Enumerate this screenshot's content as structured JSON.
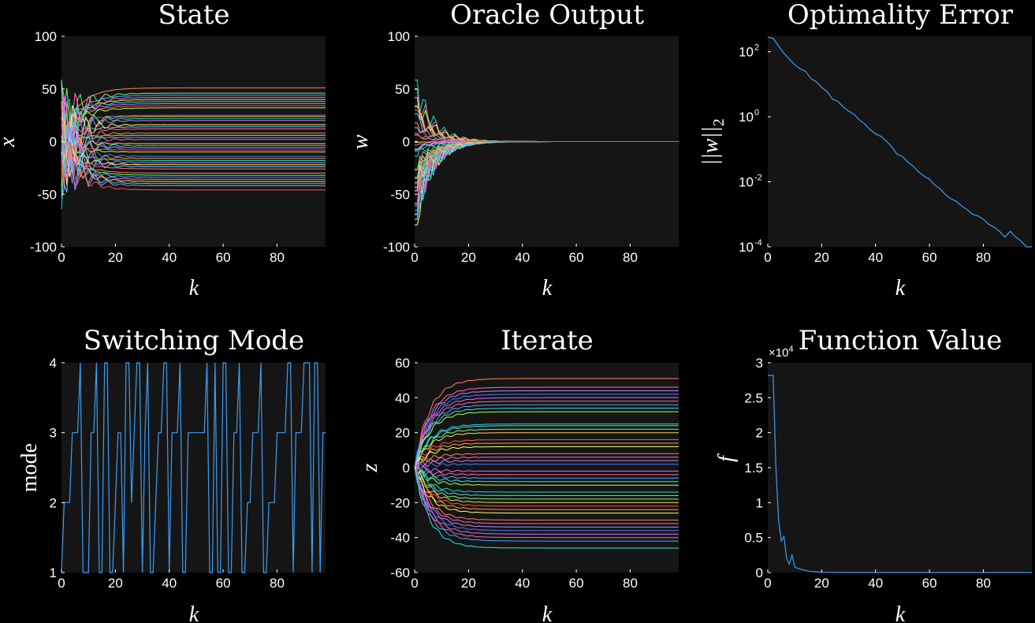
{
  "chart_data": [
    {
      "id": "state",
      "type": "line",
      "title": "State",
      "xlabel": "k",
      "ylabel": "x",
      "xlim": [
        0,
        98
      ],
      "ylim": [
        -100,
        100
      ],
      "xticks": [
        "0",
        "20",
        "40",
        "60",
        "80"
      ],
      "yticks": [
        "-100",
        "-50",
        "0",
        "50",
        "100"
      ],
      "ytick_values": [
        -100,
        -50,
        0,
        50,
        100
      ],
      "series_count": 40,
      "settled_values": [
        51,
        46,
        44,
        42,
        40,
        38,
        36,
        34,
        32,
        25,
        24,
        22,
        20,
        16,
        14,
        12,
        8,
        6,
        4,
        2,
        -2,
        -4,
        -6,
        -8,
        -10,
        -14,
        -16,
        -18,
        -20,
        -22,
        -24,
        -26,
        -30,
        -32,
        -34,
        -36,
        -38,
        -40,
        -42,
        -46
      ],
      "transient_peak": [
        62,
        -85
      ],
      "settle_k": 30
    },
    {
      "id": "oracle",
      "type": "line",
      "title": "Oracle Output",
      "xlabel": "k",
      "ylabel": "w",
      "xlim": [
        0,
        98
      ],
      "ylim": [
        -100,
        100
      ],
      "xticks": [
        "0",
        "20",
        "40",
        "60",
        "80"
      ],
      "yticks": [
        "-100",
        "-50",
        "0",
        "50",
        "100"
      ],
      "ytick_values": [
        -100,
        -50,
        0,
        50,
        100
      ],
      "series_count": 40,
      "initial_peak": [
        62,
        -85
      ],
      "settle_k": 40,
      "final_value": 0
    },
    {
      "id": "opt-error",
      "type": "line",
      "title": "Optimality Error",
      "xlabel": "k",
      "ylabel": "||w||",
      "ylabel_sub": "2",
      "yscale": "log",
      "xlim": [
        0,
        98
      ],
      "ylim": [
        0.0001,
        300
      ],
      "xticks": [
        "0",
        "20",
        "40",
        "60",
        "80"
      ],
      "ytick_bases": [
        "10",
        "10",
        "10",
        "10"
      ],
      "ytick_exps": [
        "-4",
        "-2",
        "0",
        "2"
      ],
      "ytick_values": [
        0.0001,
        0.01,
        1,
        100
      ],
      "x": [
        0,
        2,
        4,
        6,
        8,
        10,
        12,
        14,
        16,
        18,
        20,
        22,
        24,
        26,
        28,
        30,
        32,
        34,
        36,
        38,
        40,
        42,
        44,
        46,
        48,
        50,
        52,
        54,
        56,
        58,
        60,
        62,
        64,
        66,
        68,
        70,
        72,
        74,
        76,
        78,
        80,
        82,
        84,
        86,
        88,
        90,
        92,
        94,
        96,
        98
      ],
      "values": [
        280,
        260,
        150,
        90,
        60,
        40,
        30,
        25,
        15,
        12,
        8,
        6,
        3.5,
        3,
        2,
        1.5,
        1.2,
        0.8,
        0.6,
        0.4,
        0.3,
        0.25,
        0.18,
        0.12,
        0.07,
        0.06,
        0.04,
        0.03,
        0.02,
        0.015,
        0.012,
        0.008,
        0.006,
        0.004,
        0.003,
        0.0025,
        0.0018,
        0.0014,
        0.001,
        0.0009,
        0.0007,
        0.0005,
        0.0004,
        0.0003,
        0.0002,
        0.0003,
        0.0002,
        0.00015,
        0.0001,
        8e-05
      ]
    },
    {
      "id": "mode",
      "type": "line",
      "title": "Switching Mode",
      "xlabel": "k",
      "ylabel": "mode",
      "xlim": [
        0,
        98
      ],
      "ylim": [
        1,
        4
      ],
      "xticks": [
        "0",
        "20",
        "40",
        "60",
        "80"
      ],
      "yticks": [
        "1",
        "2",
        "3",
        "4"
      ],
      "ytick_values": [
        1,
        2,
        3,
        4
      ],
      "x": [
        0,
        1,
        2,
        3,
        4,
        5,
        6,
        7,
        8,
        9,
        10,
        11,
        12,
        13,
        14,
        15,
        16,
        17,
        18,
        19,
        20,
        21,
        22,
        23,
        24,
        25,
        26,
        27,
        28,
        29,
        30,
        31,
        32,
        33,
        34,
        35,
        36,
        37,
        38,
        39,
        40,
        41,
        42,
        43,
        44,
        45,
        46,
        47,
        48,
        49,
        50,
        51,
        52,
        53,
        54,
        55,
        56,
        57,
        58,
        59,
        60,
        61,
        62,
        63,
        64,
        65,
        66,
        67,
        68,
        69,
        70,
        71,
        72,
        73,
        74,
        75,
        76,
        77,
        78,
        79,
        80,
        81,
        82,
        83,
        84,
        85,
        86,
        87,
        88,
        89,
        90,
        91,
        92,
        93,
        94,
        95,
        96,
        97,
        98
      ],
      "values": [
        1,
        2,
        2,
        2,
        3,
        3,
        3,
        4,
        1,
        1,
        1,
        3,
        3,
        4,
        1,
        1,
        4,
        4,
        1,
        1,
        2,
        3,
        3,
        1,
        4,
        4,
        2,
        3,
        4,
        4,
        1,
        3,
        4,
        1,
        1,
        2,
        3,
        3,
        4,
        4,
        1,
        3,
        3,
        3,
        4,
        1,
        1,
        3,
        3,
        3,
        3,
        3,
        3,
        3,
        4,
        1,
        1,
        4,
        1,
        1,
        4,
        4,
        1,
        1,
        3,
        3,
        4,
        1,
        1,
        2,
        2,
        3,
        3,
        3,
        4,
        1,
        1,
        2,
        2,
        2,
        3,
        3,
        3,
        3,
        4,
        4,
        1,
        3,
        3,
        3,
        4,
        4,
        4,
        1,
        4,
        4,
        1,
        3,
        3
      ]
    },
    {
      "id": "iterate",
      "type": "line",
      "title": "Iterate",
      "xlabel": "k",
      "ylabel": "z",
      "xlim": [
        0,
        98
      ],
      "ylim": [
        -60,
        60
      ],
      "xticks": [
        "0",
        "20",
        "40",
        "60",
        "80"
      ],
      "yticks": [
        "-60",
        "-40",
        "-20",
        "0",
        "20",
        "40",
        "60"
      ],
      "ytick_values": [
        -60,
        -40,
        -20,
        0,
        20,
        40,
        60
      ],
      "series_count": 40,
      "settled_values": [
        51,
        46,
        44,
        42,
        40,
        38,
        36,
        34,
        32,
        25,
        24,
        22,
        20,
        16,
        14,
        12,
        8,
        6,
        4,
        2,
        -2,
        -4,
        -6,
        -8,
        -10,
        -14,
        -16,
        -18,
        -20,
        -22,
        -24,
        -26,
        -30,
        -32,
        -34,
        -36,
        -38,
        -40,
        -42,
        -46
      ],
      "initial_value": 0,
      "settle_k": 30
    },
    {
      "id": "fvalue",
      "type": "line",
      "title": "Function Value",
      "xlabel": "k",
      "ylabel": "f",
      "multiplier_base": "×10",
      "multiplier_exp": "4",
      "xlim": [
        0,
        98
      ],
      "ylim": [
        0,
        3
      ],
      "xticks": [
        "0",
        "20",
        "40",
        "60",
        "80"
      ],
      "yticks": [
        "0",
        "0.5",
        "1",
        "1.5",
        "2",
        "2.5",
        "3"
      ],
      "ytick_values": [
        0,
        0.5,
        1,
        1.5,
        2,
        2.5,
        3
      ],
      "x": [
        0,
        1,
        2,
        3,
        4,
        5,
        6,
        7,
        8,
        9,
        10,
        11,
        12,
        13,
        14,
        15,
        16,
        18,
        20,
        22,
        24,
        26,
        28,
        30,
        40,
        50,
        60,
        70,
        80,
        90,
        98
      ],
      "values": [
        2.82,
        2.82,
        2.82,
        1.5,
        0.75,
        0.45,
        0.52,
        0.2,
        0.12,
        0.25,
        0.08,
        0.06,
        0.05,
        0.04,
        0.03,
        0.02,
        0.015,
        0.01,
        0.005,
        0.003,
        0.002,
        0.001,
        0.001,
        0,
        0,
        0,
        0,
        0,
        0,
        0,
        0
      ]
    }
  ]
}
